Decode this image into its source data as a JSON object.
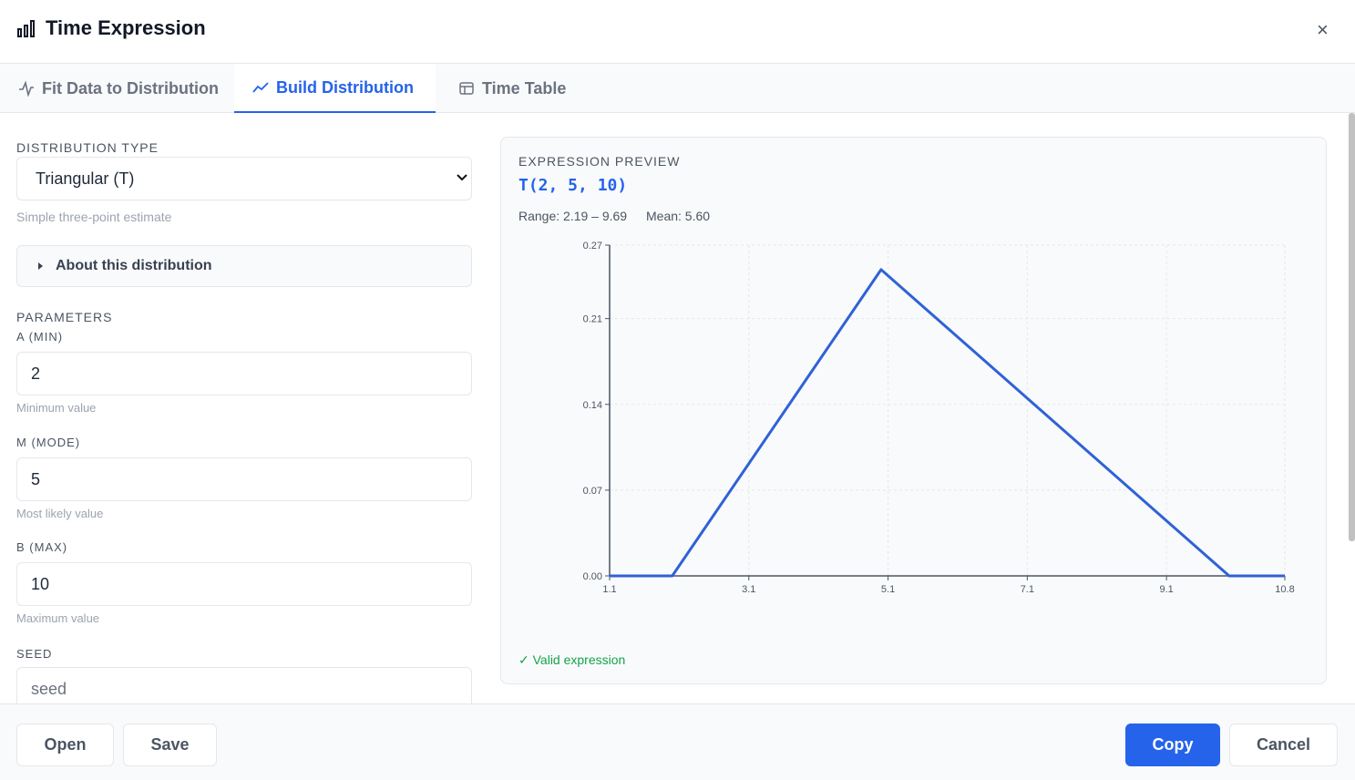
{
  "header": {
    "title": "Time Expression",
    "close": "×"
  },
  "tabs": [
    {
      "label": "Fit Data to Distribution",
      "active": false
    },
    {
      "label": "Build Distribution",
      "active": true
    },
    {
      "label": "Time Table",
      "active": false
    }
  ],
  "form": {
    "distribution_type": {
      "label": "DISTRIBUTION TYPE",
      "value": "Triangular (T)",
      "hint": "Simple three-point estimate"
    },
    "about": "About this distribution",
    "parameters": {
      "label": "PARAMETERS",
      "fields": [
        {
          "label": "A (MIN)",
          "value": "2",
          "hint": "Minimum value"
        },
        {
          "label": "M (MODE)",
          "value": "5",
          "hint": "Most likely value"
        },
        {
          "label": "B (MAX)",
          "value": "10",
          "hint": "Maximum value"
        }
      ]
    },
    "seed": {
      "label": "SEED",
      "placeholder": "seed"
    }
  },
  "preview": {
    "label": "EXPRESSION PREVIEW",
    "expression": "T(2, 5, 10)",
    "range": "Range: 2.19 – 9.69",
    "mean": "Mean: 5.60",
    "status": "✓ Valid expression"
  },
  "chart_data": {
    "type": "line",
    "x": [
      1.1,
      2,
      5,
      10,
      10.8
    ],
    "values": [
      0,
      0,
      0.25,
      0,
      0
    ],
    "color": "#2f62d6",
    "xlim": [
      1.1,
      10.8
    ],
    "xticks": [
      1.1,
      3.1,
      5.1,
      7.1,
      9.1,
      10.8
    ],
    "ylim": [
      0,
      0.27
    ],
    "yticks": [
      {
        "value": 0,
        "label": "0.00"
      },
      0.07,
      0.14,
      0.21,
      0.27
    ],
    "grid": true
  },
  "footer": {
    "buttons": [
      "Open",
      "Save",
      "Copy",
      "Cancel"
    ]
  }
}
